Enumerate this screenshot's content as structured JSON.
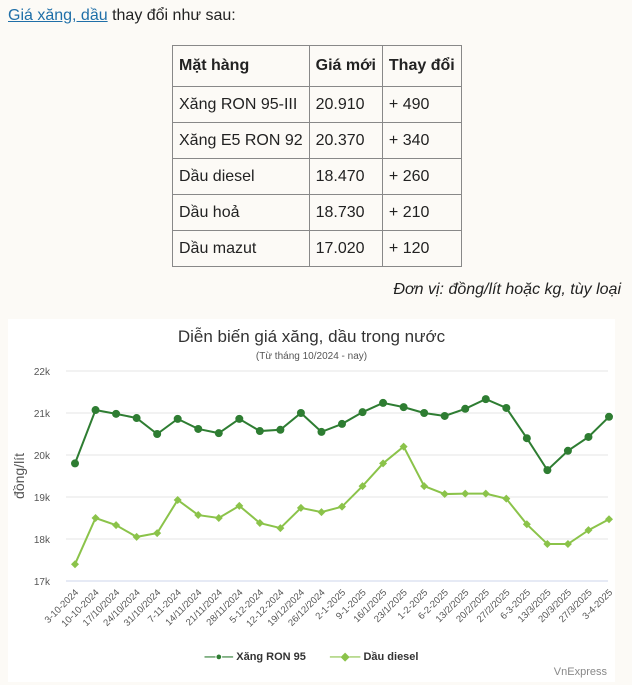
{
  "intro": {
    "link": "Giá xăng, dầu",
    "rest": " thay đổi như sau:"
  },
  "table": {
    "headers": [
      "Mặt hàng",
      "Giá mới",
      "Thay đổi"
    ],
    "rows": [
      [
        "Xăng RON 95-III",
        "20.910",
        "+ 490"
      ],
      [
        "Xăng E5 RON 92",
        "20.370",
        "+ 340"
      ],
      [
        "Dầu diesel",
        "18.470",
        "+ 260"
      ],
      [
        "Dầu hoả",
        "18.730",
        "+ 210"
      ],
      [
        "Dầu mazut",
        "17.020",
        "+ 120"
      ]
    ]
  },
  "unit": "Đơn vị: đồng/lít hoặc kg, tùy loại",
  "chart_data": {
    "type": "line",
    "title": "Diễn biến giá xăng, dầu trong nước",
    "subtitle": "(Từ tháng 10/2024 - nay)",
    "ylabel": "đồng/lít",
    "xlabel": "",
    "ylim": [
      17000,
      22000
    ],
    "yticks": [
      "17k",
      "18k",
      "19k",
      "20k",
      "21k",
      "22k"
    ],
    "categories": [
      "3-10-2024",
      "10-10-2024",
      "17/10/2024",
      "24/10/2024",
      "31/10/2024",
      "7-11-2024",
      "14/11/2024",
      "21/11/2024",
      "28/11/2024",
      "5-12-2024",
      "12-12-2024",
      "19/12/2024",
      "26/12/2024",
      "2-1-2025",
      "9-1-2025",
      "16/1/2025",
      "23/1/2025",
      "1-2-2025",
      "6-2-2025",
      "13/2/2025",
      "20/2/2025",
      "27/2/2025",
      "6-3-2025",
      "13/3/2025",
      "20/3/2025",
      "27/3/2025",
      "3-4-2025"
    ],
    "series": [
      {
        "name": "Xăng RON 95",
        "color": "#2e7d32",
        "values": [
          19800,
          21070,
          20980,
          20880,
          20500,
          20860,
          20620,
          20520,
          20860,
          20570,
          20600,
          21000,
          20550,
          20740,
          21020,
          21240,
          21140,
          21000,
          20930,
          21100,
          21330,
          21120,
          20400,
          19640,
          20100,
          20430,
          20910
        ]
      },
      {
        "name": "Dầu diesel",
        "color": "#8bc34a",
        "values": [
          17400,
          18500,
          18330,
          18050,
          18140,
          18930,
          18570,
          18500,
          18790,
          18380,
          18260,
          18740,
          18640,
          18770,
          19260,
          19800,
          20200,
          19260,
          19070,
          19080,
          19080,
          18960,
          18350,
          17880,
          17880,
          18210,
          18470
        ]
      }
    ],
    "legend": "bottom",
    "grid": true
  },
  "credit": "VnExpress"
}
